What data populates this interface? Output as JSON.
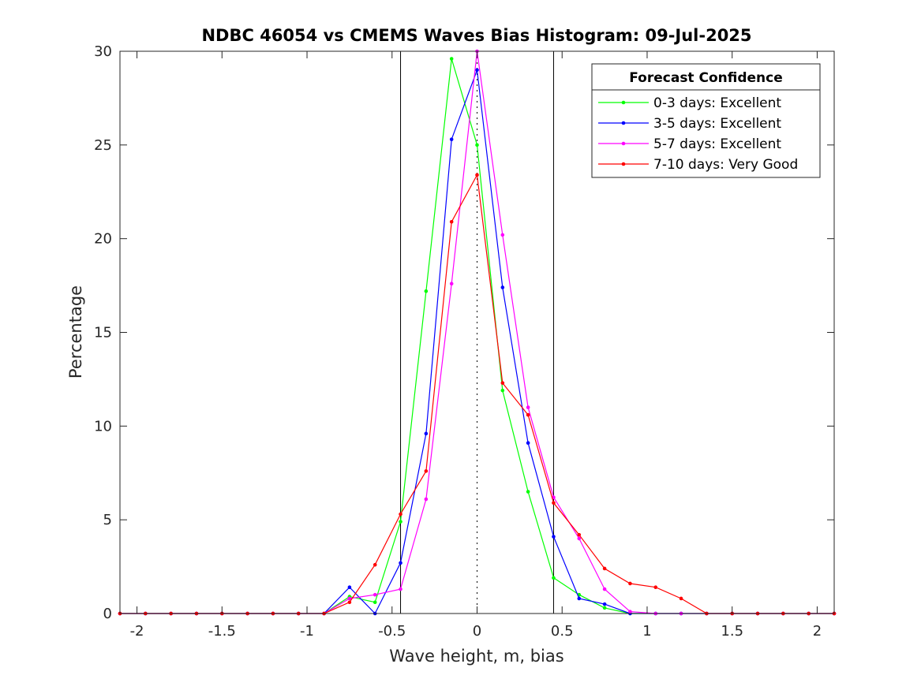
{
  "chart_data": {
    "type": "line",
    "title": "NDBC 46054 vs CMEMS Waves Bias Histogram: 09-Jul-2025",
    "xlabel": "Wave height, m, bias",
    "ylabel": "Percentage",
    "xlim": [
      -2.1,
      2.1
    ],
    "ylim": [
      0,
      30
    ],
    "xticks": [
      -2,
      -1.5,
      -1,
      -0.5,
      0,
      0.5,
      1,
      1.5,
      2
    ],
    "xtick_labels": [
      "-2",
      "-1.5",
      "-1",
      "-0.5",
      "0",
      "0.5",
      "1",
      "1.5",
      "2"
    ],
    "yticks": [
      0,
      5,
      10,
      15,
      20,
      25,
      30
    ],
    "ytick_labels": [
      "0",
      "5",
      "10",
      "15",
      "20",
      "25",
      "30"
    ],
    "reference_lines": {
      "solid_x": [
        -0.45,
        0.45
      ],
      "dotted_x": [
        0
      ]
    },
    "grid": false,
    "legend": {
      "title": "Forecast Confidence",
      "position": "top-right"
    },
    "x": [
      -2.1,
      -1.95,
      -1.8,
      -1.65,
      -1.5,
      -1.35,
      -1.2,
      -1.05,
      -0.9,
      -0.75,
      -0.6,
      -0.45,
      -0.3,
      -0.15,
      0,
      0.15,
      0.3,
      0.45,
      0.6,
      0.75,
      0.9,
      1.05,
      1.2,
      1.35,
      1.5,
      1.65,
      1.8,
      1.95,
      2.1
    ],
    "series": [
      {
        "name": "0-3 days: Excellent",
        "color": "#00ff00",
        "values": [
          0,
          0,
          0,
          0,
          0,
          0,
          0,
          0,
          0,
          0.9,
          0.6,
          4.9,
          17.2,
          29.6,
          25.0,
          11.9,
          6.5,
          1.9,
          1.0,
          0.3,
          0,
          0,
          0,
          0,
          0,
          0,
          0,
          0,
          0
        ]
      },
      {
        "name": "3-5 days: Excellent",
        "color": "#0000ff",
        "values": [
          0,
          0,
          0,
          0,
          0,
          0,
          0,
          0,
          0,
          1.4,
          0,
          2.7,
          9.6,
          25.3,
          29.0,
          17.4,
          9.1,
          4.1,
          0.8,
          0.5,
          0,
          0,
          0,
          0,
          0,
          0,
          0,
          0,
          0
        ]
      },
      {
        "name": "5-7 days: Excellent",
        "color": "#ff00ff",
        "values": [
          0,
          0,
          0,
          0,
          0,
          0,
          0,
          0,
          0,
          0.8,
          1.0,
          1.3,
          6.1,
          17.6,
          30.0,
          20.2,
          11.0,
          6.2,
          4.0,
          1.3,
          0.1,
          0,
          0,
          0,
          0,
          0,
          0,
          0,
          0
        ]
      },
      {
        "name": "7-10 days: Very Good",
        "color": "#ff0000",
        "values": [
          0,
          0,
          0,
          0,
          0,
          0,
          0,
          0,
          0,
          0.6,
          2.6,
          5.3,
          7.6,
          20.9,
          23.4,
          12.3,
          10.6,
          5.9,
          4.2,
          2.4,
          1.6,
          1.4,
          0.8,
          0,
          0,
          0,
          0,
          0,
          0
        ]
      }
    ]
  }
}
